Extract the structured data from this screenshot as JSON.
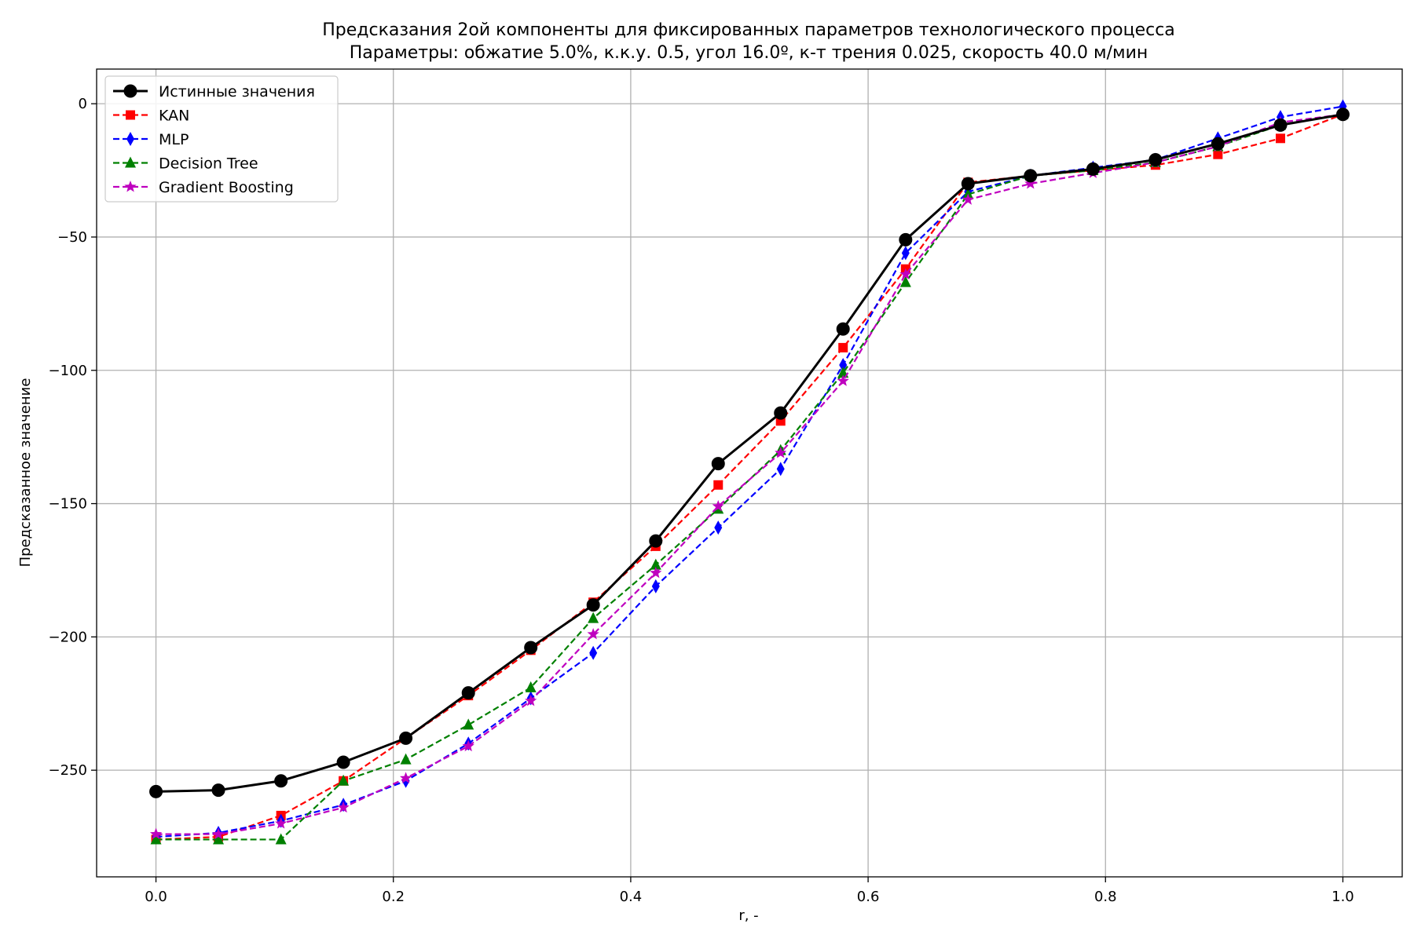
{
  "chart_data": {
    "type": "line",
    "title": "Предсказания 2ой компоненты для фиксированных параметров технологического процесса",
    "subtitle": "Параметры: обжатие 5.0%, к.к.у. 0.5, угол 16.0º, к-т трения 0.025, скорость 40.0 м/мин",
    "xlabel": "r, -",
    "ylabel": "Предсказанное значение",
    "xlim": [
      -0.05,
      1.05
    ],
    "ylim": [
      -290,
      13
    ],
    "xticks": [
      0.0,
      0.2,
      0.4,
      0.6,
      0.8,
      1.0
    ],
    "xtick_labels": [
      "0.0",
      "0.2",
      "0.4",
      "0.6",
      "0.8",
      "1.0"
    ],
    "yticks": [
      0,
      -50,
      -100,
      -150,
      -200,
      -250
    ],
    "ytick_labels": [
      "0",
      "−50",
      "−100",
      "−150",
      "−200",
      "−250"
    ],
    "grid": true,
    "legend_position": "top-left",
    "x": [
      0.0,
      0.0526,
      0.1053,
      0.1579,
      0.2105,
      0.2632,
      0.3158,
      0.3684,
      0.4211,
      0.4737,
      0.5263,
      0.5789,
      0.6316,
      0.6842,
      0.7368,
      0.7895,
      0.8421,
      0.8947,
      0.9474,
      1.0
    ],
    "series": [
      {
        "name": "Истинные значения",
        "color": "#000000",
        "dash": "solid",
        "marker": "circle",
        "values": [
          -258,
          -257.5,
          -254,
          -247,
          -238,
          -221,
          -204,
          -188,
          -164,
          -135,
          -116,
          -84.5,
          -51,
          -30,
          -27,
          -24.5,
          -21,
          -15,
          -8,
          -4
        ]
      },
      {
        "name": "KAN",
        "color": "#ff0000",
        "dash": "dashed",
        "marker": "square",
        "values": [
          -276,
          -275,
          -267,
          -254,
          -238,
          -222,
          -205,
          -187,
          -166,
          -143,
          -119,
          -91.5,
          -62,
          -29.5,
          -27,
          -25,
          -23,
          -19,
          -13,
          -4
        ]
      },
      {
        "name": "MLP",
        "color": "#0000ff",
        "dash": "dashed",
        "marker": "thin_diamond",
        "values": [
          -275,
          -273.5,
          -269,
          -263,
          -254,
          -240,
          -223,
          -206,
          -181,
          -159,
          -137,
          -98,
          -56,
          -33,
          -27,
          -24,
          -21,
          -13,
          -5,
          -1
        ]
      },
      {
        "name": "Decision Tree",
        "color": "#008000",
        "dash": "dashed",
        "marker": "triangle",
        "values": [
          -276,
          -276,
          -276,
          -254,
          -246,
          -233,
          -219,
          -193,
          -173,
          -152,
          -130,
          -101,
          -67,
          -34,
          -27,
          -25,
          -22,
          -16,
          -8,
          -4
        ]
      },
      {
        "name": "Gradient Boosting",
        "color": "#bf00bf",
        "dash": "dashed",
        "marker": "star",
        "values": [
          -274,
          -274,
          -270,
          -264,
          -253,
          -241,
          -224,
          -199,
          -176,
          -151,
          -131,
          -104,
          -64,
          -36,
          -30,
          -26,
          -22,
          -16,
          -7,
          -4
        ]
      }
    ]
  }
}
